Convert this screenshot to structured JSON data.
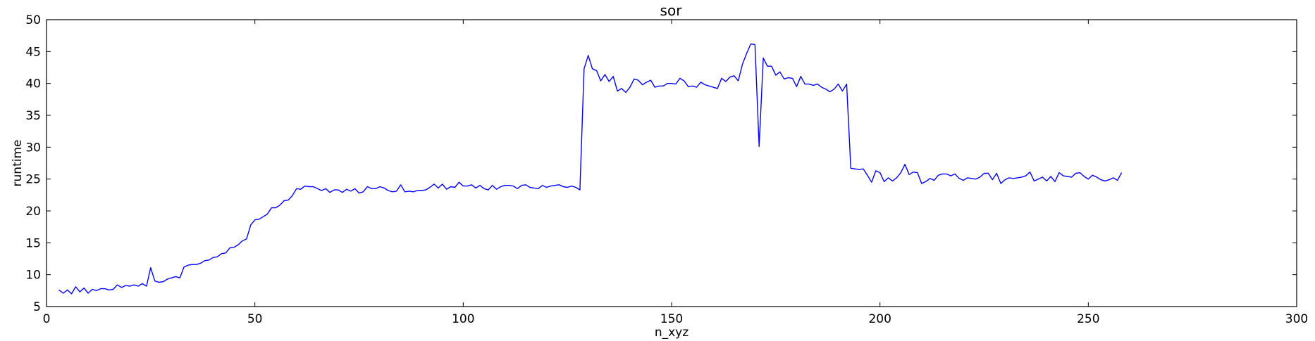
{
  "chart_data": {
    "type": "line",
    "title": "sor",
    "xlabel": "n_xyz",
    "ylabel": "runtime",
    "xlim": [
      0,
      300
    ],
    "ylim": [
      5,
      50
    ],
    "xticks": [
      0,
      50,
      100,
      150,
      200,
      250,
      300
    ],
    "yticks": [
      5,
      10,
      15,
      20,
      25,
      30,
      35,
      40,
      45,
      50
    ],
    "grid": false,
    "series": [
      {
        "color": "#0000ff",
        "x": [
          3,
          4,
          5,
          6,
          7,
          8,
          9,
          10,
          11,
          12,
          13,
          14,
          15,
          16,
          17,
          18,
          19,
          20,
          21,
          22,
          23,
          24,
          25,
          26,
          27,
          28,
          29,
          30,
          31,
          32,
          33,
          34,
          35,
          36,
          37,
          38,
          39,
          40,
          41,
          42,
          43,
          44,
          45,
          46,
          47,
          48,
          49,
          50,
          51,
          52,
          53,
          54,
          55,
          56,
          57,
          58,
          59,
          60,
          61,
          62,
          63,
          64,
          65,
          66,
          67,
          68,
          69,
          70,
          71,
          72,
          73,
          74,
          75,
          76,
          77,
          78,
          79,
          80,
          81,
          82,
          83,
          84,
          85,
          86,
          87,
          88,
          89,
          90,
          91,
          92,
          93,
          94,
          95,
          96,
          97,
          98,
          99,
          100,
          101,
          102,
          103,
          104,
          105,
          106,
          107,
          108,
          109,
          110,
          111,
          112,
          113,
          114,
          115,
          116,
          117,
          118,
          119,
          120,
          121,
          122,
          123,
          124,
          125,
          126,
          127,
          128,
          129,
          130,
          131,
          132,
          133,
          134,
          135,
          136,
          137,
          138,
          139,
          140,
          141,
          142,
          143,
          144,
          145,
          146,
          147,
          148,
          149,
          150,
          151,
          152,
          153,
          154,
          155,
          156,
          157,
          158,
          159,
          160,
          161,
          162,
          163,
          164,
          165,
          166,
          167,
          168,
          169,
          170,
          171,
          172,
          173,
          174,
          175,
          176,
          177,
          178,
          179,
          180,
          181,
          182,
          183,
          184,
          185,
          186,
          187,
          188,
          189,
          190,
          191,
          192,
          193,
          194,
          195,
          196,
          197,
          198,
          199,
          200,
          201,
          202,
          203,
          204,
          205,
          206,
          207,
          208,
          209,
          210,
          211,
          212,
          213,
          214,
          215,
          216,
          217,
          218,
          219,
          220,
          221,
          222,
          223,
          224,
          225,
          226,
          227,
          228,
          229,
          230,
          231,
          232,
          233,
          234,
          235,
          236,
          237,
          238,
          239,
          240,
          241,
          242,
          243,
          244,
          245,
          246,
          247,
          248,
          249,
          250,
          251,
          252,
          253,
          254,
          255,
          256,
          257,
          258
        ],
        "y": [
          7.6,
          7.1,
          7.6,
          7.0,
          8.1,
          7.3,
          7.9,
          7.1,
          7.7,
          7.5,
          7.8,
          7.8,
          7.6,
          7.7,
          8.4,
          8.0,
          8.3,
          8.2,
          8.4,
          8.2,
          8.6,
          8.2,
          11.1,
          9.0,
          8.8,
          8.9,
          9.3,
          9.5,
          9.7,
          9.5,
          11.2,
          11.5,
          11.6,
          11.6,
          11.8,
          12.2,
          12.3,
          12.7,
          12.8,
          13.3,
          13.4,
          14.2,
          14.3,
          14.7,
          15.3,
          15.6,
          17.8,
          18.6,
          18.7,
          19.1,
          19.5,
          20.5,
          20.5,
          20.9,
          21.6,
          21.7,
          22.4,
          23.5,
          23.4,
          23.9,
          23.8,
          23.8,
          23.5,
          23.2,
          23.5,
          22.9,
          23.3,
          23.3,
          22.9,
          23.4,
          23.1,
          23.5,
          22.8,
          23.0,
          23.8,
          23.5,
          23.5,
          23.8,
          23.6,
          23.2,
          23.0,
          23.1,
          24.1,
          23.0,
          23.1,
          23.0,
          23.2,
          23.2,
          23.3,
          23.7,
          24.2,
          23.6,
          24.2,
          23.4,
          23.8,
          23.7,
          24.5,
          23.9,
          23.9,
          24.1,
          23.6,
          24.0,
          23.5,
          23.3,
          24.0,
          23.4,
          23.8,
          24.0,
          24.0,
          23.9,
          23.5,
          24.0,
          24.1,
          23.7,
          23.6,
          23.5,
          24.0,
          23.7,
          23.9,
          24.0,
          24.1,
          23.8,
          23.7,
          23.9,
          23.7,
          23.3,
          42.3,
          44.4,
          42.3,
          42.0,
          40.4,
          41.4,
          40.3,
          41.1,
          38.8,
          39.2,
          38.6,
          39.4,
          40.7,
          40.5,
          39.8,
          40.2,
          40.5,
          39.4,
          39.6,
          39.6,
          40.0,
          40.0,
          39.9,
          40.8,
          40.4,
          39.5,
          39.6,
          39.4,
          40.2,
          39.8,
          39.6,
          39.4,
          39.2,
          40.8,
          40.3,
          41.0,
          41.2,
          40.4,
          43.0,
          44.7,
          46.2,
          46.1,
          30.1,
          44.0,
          42.7,
          42.7,
          41.3,
          41.8,
          40.7,
          40.9,
          40.8,
          39.5,
          41.1,
          39.9,
          39.9,
          39.7,
          39.9,
          39.4,
          39.1,
          38.7,
          39.1,
          39.9,
          38.8,
          39.9,
          26.7,
          26.6,
          26.5,
          26.6,
          25.6,
          24.5,
          26.3,
          26.0,
          24.6,
          25.2,
          24.7,
          25.2,
          26.0,
          27.3,
          25.7,
          26.1,
          26.0,
          24.3,
          24.6,
          25.1,
          24.8,
          25.6,
          25.8,
          25.8,
          25.5,
          25.8,
          25.1,
          24.8,
          25.2,
          25.1,
          25.0,
          25.3,
          25.9,
          25.9,
          24.9,
          25.9,
          24.3,
          24.9,
          25.2,
          25.1,
          25.2,
          25.3,
          25.5,
          26.1,
          24.7,
          25.0,
          25.3,
          24.7,
          25.4,
          24.6,
          26.0,
          25.5,
          25.4,
          25.3,
          25.9,
          26.0,
          25.4,
          25.0,
          25.6,
          25.3,
          24.9,
          24.7,
          24.9,
          25.2,
          24.8,
          26.0
        ]
      }
    ]
  }
}
